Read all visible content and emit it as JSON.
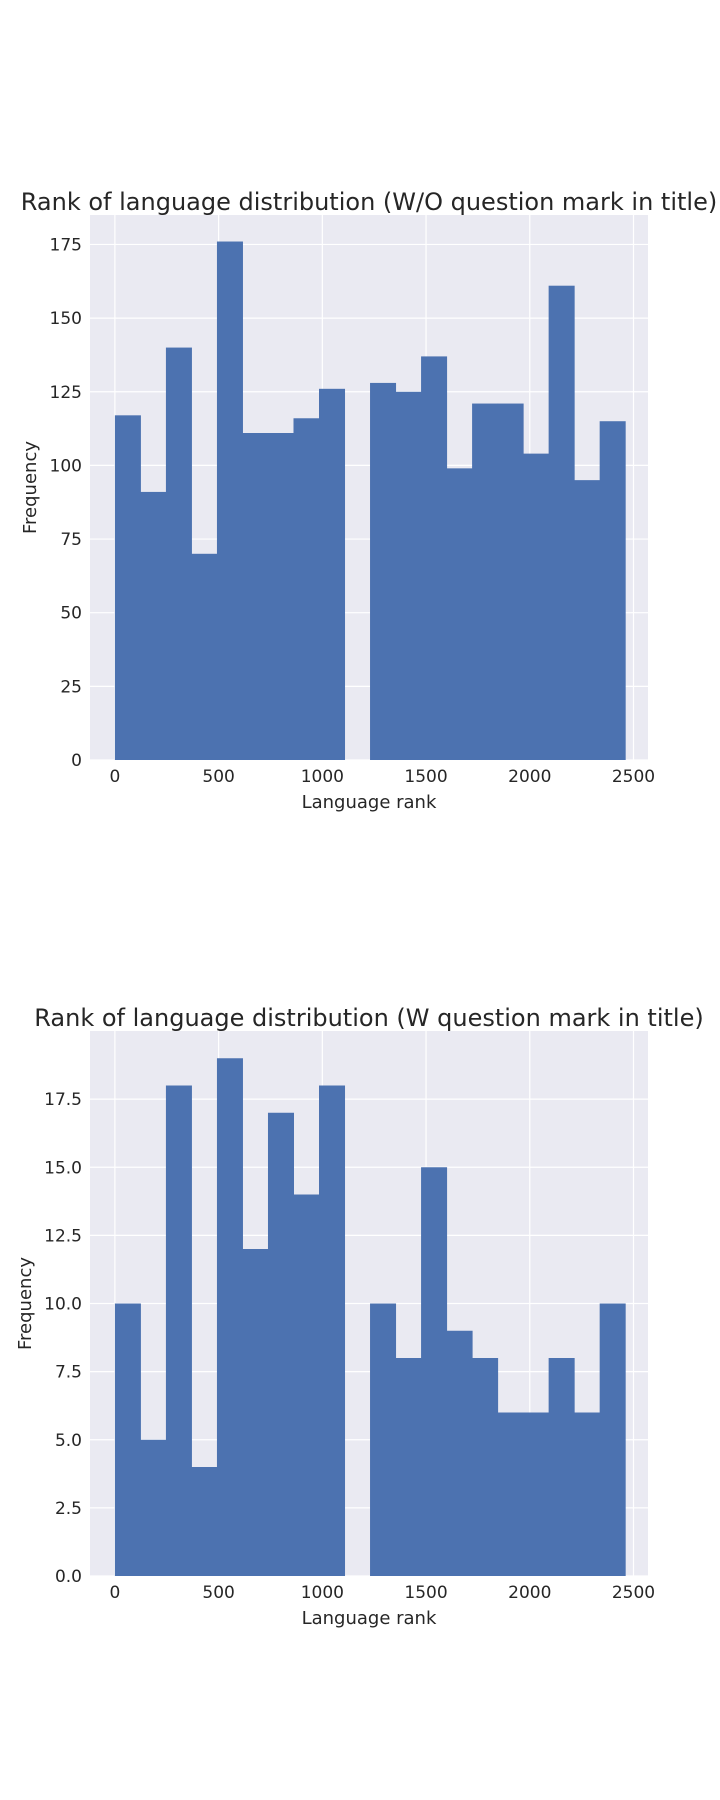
{
  "chart_data": [
    {
      "type": "bar",
      "title": "Rank of language distribution (W/O question mark in title)",
      "xlabel": "Language rank",
      "ylabel": "Frequency",
      "xlim": [
        -120,
        2570
      ],
      "ylim": [
        0,
        185
      ],
      "xticks": [
        0,
        500,
        1000,
        1500,
        2000,
        2500
      ],
      "xtick_labels": [
        "0",
        "500",
        "1000",
        "1500",
        "2000",
        "2500"
      ],
      "yticks": [
        0,
        25,
        50,
        75,
        100,
        125,
        150,
        175
      ],
      "ytick_labels": [
        "0",
        "25",
        "50",
        "75",
        "100",
        "125",
        "150",
        "175"
      ],
      "grid": true,
      "bins": [
        [
          0,
          123
        ],
        [
          123,
          246
        ],
        [
          246,
          369
        ],
        [
          369,
          492
        ],
        [
          492,
          615
        ],
        [
          615,
          738
        ],
        [
          738,
          861
        ],
        [
          861,
          984
        ],
        [
          984,
          1107
        ],
        [
          1107,
          1230
        ],
        [
          1230,
          1353
        ],
        [
          1353,
          1476
        ],
        [
          1476,
          1599
        ],
        [
          1599,
          1722
        ],
        [
          1722,
          1845
        ],
        [
          1845,
          1968
        ],
        [
          1968,
          2091
        ],
        [
          2091,
          2214
        ],
        [
          2214,
          2337
        ],
        [
          2337,
          2460
        ]
      ],
      "values": [
        117,
        91,
        140,
        70,
        176,
        111,
        111,
        116,
        126,
        0,
        128,
        125,
        137,
        99,
        121,
        121,
        104,
        161,
        95,
        115
      ],
      "color": "#4c72b0",
      "background": "#eaeaf2",
      "gridColor": "#ffffff"
    },
    {
      "type": "bar",
      "title": "Rank of language distribution (W question mark in title)",
      "xlabel": "Language rank",
      "ylabel": "Frequency",
      "xlim": [
        -120,
        2570
      ],
      "ylim": [
        0,
        20
      ],
      "xticks": [
        0,
        500,
        1000,
        1500,
        2000,
        2500
      ],
      "xtick_labels": [
        "0",
        "500",
        "1000",
        "1500",
        "2000",
        "2500"
      ],
      "yticks": [
        0,
        2.5,
        5,
        7.5,
        10,
        12.5,
        15,
        17.5
      ],
      "ytick_labels": [
        "0.0",
        "2.5",
        "5.0",
        "7.5",
        "10.0",
        "12.5",
        "15.0",
        "17.5"
      ],
      "grid": true,
      "bins": [
        [
          0,
          123
        ],
        [
          123,
          246
        ],
        [
          246,
          369
        ],
        [
          369,
          492
        ],
        [
          492,
          615
        ],
        [
          615,
          738
        ],
        [
          738,
          861
        ],
        [
          861,
          984
        ],
        [
          984,
          1107
        ],
        [
          1107,
          1230
        ],
        [
          1230,
          1353
        ],
        [
          1353,
          1476
        ],
        [
          1476,
          1599
        ],
        [
          1599,
          1722
        ],
        [
          1722,
          1845
        ],
        [
          1845,
          1968
        ],
        [
          1968,
          2091
        ],
        [
          2091,
          2214
        ],
        [
          2214,
          2337
        ],
        [
          2337,
          2460
        ]
      ],
      "values": [
        10,
        5,
        18,
        4,
        19,
        12,
        17,
        14,
        18,
        0,
        10,
        8,
        15,
        9,
        8,
        6,
        6,
        8,
        6,
        10
      ],
      "color": "#4c72b0",
      "background": "#eaeaf2",
      "gridColor": "#ffffff"
    }
  ]
}
